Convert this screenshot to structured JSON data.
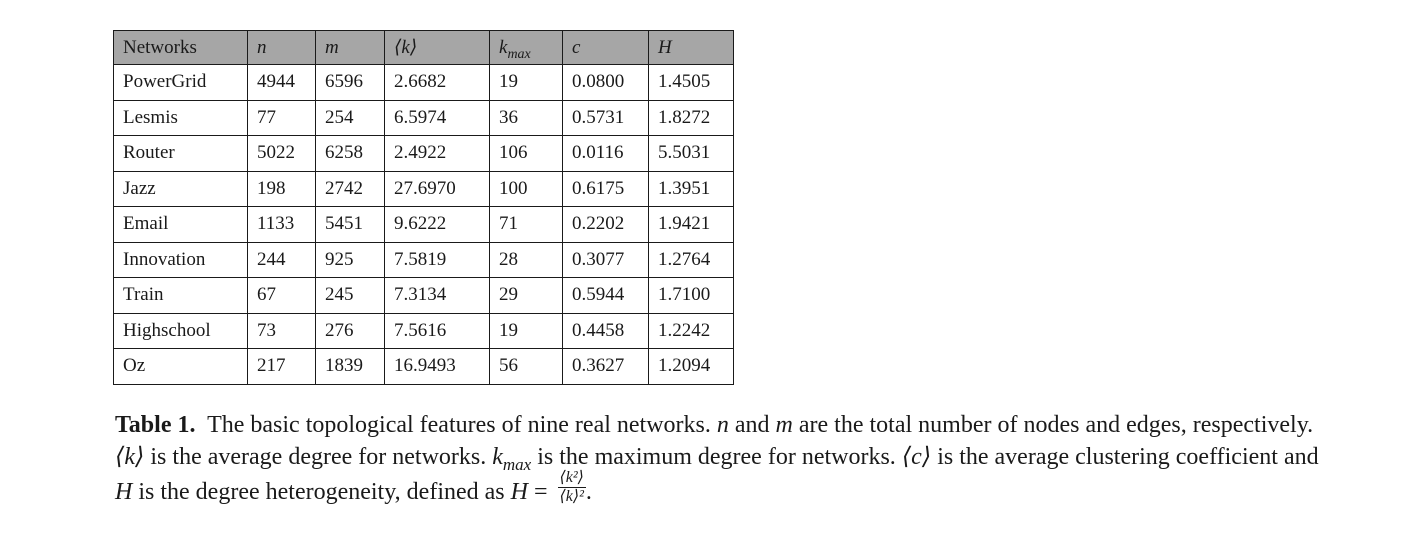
{
  "table": {
    "headers": {
      "networks": "Networks",
      "n": "n",
      "m": "m",
      "k": "⟨k⟩",
      "kmax_base": "k",
      "kmax_sub": "max",
      "c": "c",
      "h": "H"
    },
    "rows": [
      {
        "name": "PowerGrid",
        "n": "4944",
        "m": "6596",
        "k": "2.6682",
        "kmax": "19",
        "c": "0.0800",
        "h": "1.4505"
      },
      {
        "name": "Lesmis",
        "n": "77",
        "m": "254",
        "k": "6.5974",
        "kmax": "36",
        "c": "0.5731",
        "h": "1.8272"
      },
      {
        "name": "Router",
        "n": "5022",
        "m": "6258",
        "k": "2.4922",
        "kmax": "106",
        "c": "0.0116",
        "h": "5.5031"
      },
      {
        "name": "Jazz",
        "n": "198",
        "m": "2742",
        "k": "27.6970",
        "kmax": "100",
        "c": "0.6175",
        "h": "1.3951"
      },
      {
        "name": "Email",
        "n": "1133",
        "m": "5451",
        "k": "9.6222",
        "kmax": "71",
        "c": "0.2202",
        "h": "1.9421"
      },
      {
        "name": "Innovation",
        "n": "244",
        "m": "925",
        "k": "7.5819",
        "kmax": "28",
        "c": "0.3077",
        "h": "1.2764"
      },
      {
        "name": "Train",
        "n": "67",
        "m": "245",
        "k": "7.3134",
        "kmax": "29",
        "c": "0.5944",
        "h": "1.7100"
      },
      {
        "name": "Highschool",
        "n": "73",
        "m": "276",
        "k": "7.5616",
        "kmax": "19",
        "c": "0.4458",
        "h": "1.2242"
      },
      {
        "name": "Oz",
        "n": "217",
        "m": "1839",
        "k": "16.9493",
        "kmax": "56",
        "c": "0.3627",
        "h": "1.2094"
      }
    ]
  },
  "caption": {
    "label": "Table 1.",
    "t1": "The basic topological features of nine real networks. ",
    "n": "n",
    "t2": " and ",
    "m": "m",
    "t3": " are the total number of nodes and edges, respectively. ",
    "k": "⟨k⟩",
    "t4": " is the average degree for networks. ",
    "kmax_base": "k",
    "kmax_sub": "max",
    "t5": " is the maximum degree for networks. ",
    "c": "⟨c⟩",
    "t6": " is the average clustering coefficient and ",
    "H": "H",
    "t7": " is the degree heterogeneity, defined as ",
    "H2": "H",
    "eq": " = ",
    "frac_num": "⟨k²⟩",
    "frac_den": "⟨k⟩²",
    "end": "."
  }
}
